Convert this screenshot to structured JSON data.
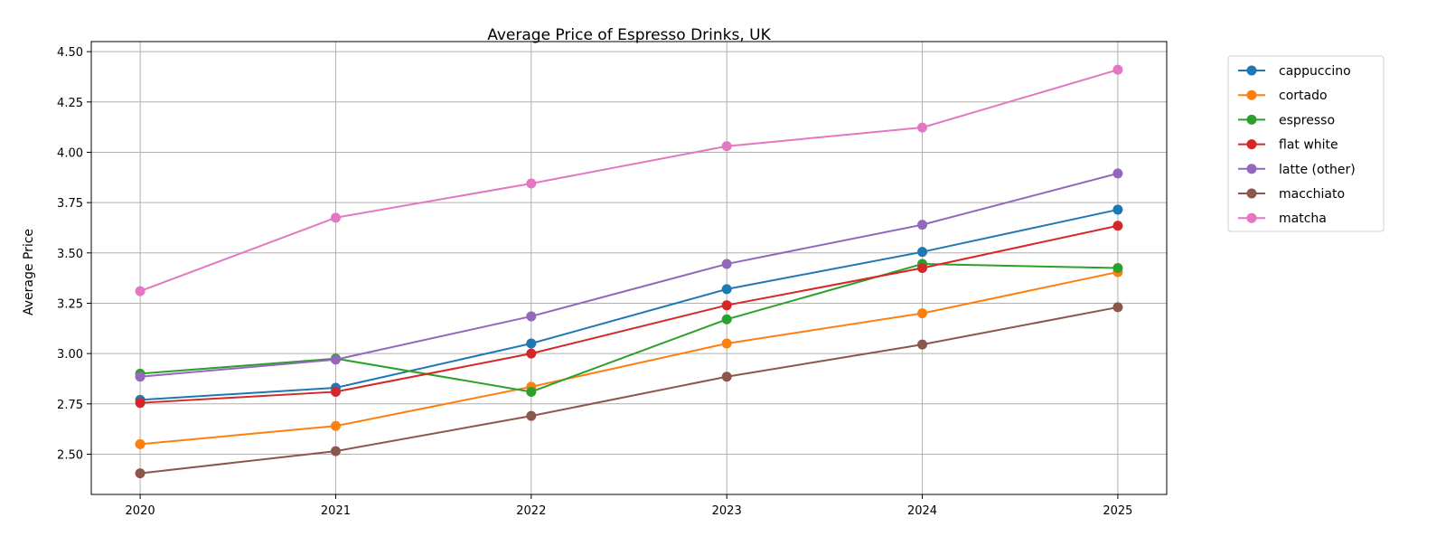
{
  "chart_data": {
    "type": "line",
    "title": "Average Price of Espresso Drinks, UK",
    "xlabel": "",
    "ylabel": "Average Price",
    "x": [
      2020,
      2021,
      2022,
      2023,
      2024,
      2025
    ],
    "xlim": [
      2019.75,
      2025.25
    ],
    "ylim": [
      2.3,
      4.55
    ],
    "yticks": [
      "2.50",
      "2.75",
      "3.00",
      "3.25",
      "3.50",
      "3.75",
      "4.00",
      "4.25",
      "4.50"
    ],
    "grid": true,
    "legend_placement": "outside-top-right",
    "series": [
      {
        "name": "cappuccino",
        "color": "#1f77b4",
        "values": [
          2.77,
          2.83,
          3.05,
          3.32,
          3.505,
          3.715
        ]
      },
      {
        "name": "cortado",
        "color": "#ff7f0e",
        "values": [
          2.55,
          2.64,
          2.835,
          3.05,
          3.2,
          3.405
        ]
      },
      {
        "name": "espresso",
        "color": "#2ca02c",
        "values": [
          2.9,
          2.975,
          2.81,
          3.17,
          3.445,
          3.425
        ]
      },
      {
        "name": "flat white",
        "color": "#d62728",
        "values": [
          2.755,
          2.81,
          3.0,
          3.24,
          3.425,
          3.635
        ]
      },
      {
        "name": "latte (other)",
        "color": "#9467bd",
        "values": [
          2.885,
          2.97,
          3.185,
          3.445,
          3.64,
          3.895
        ]
      },
      {
        "name": "macchiato",
        "color": "#8c564b",
        "values": [
          2.405,
          2.515,
          2.69,
          2.885,
          3.045,
          3.23
        ]
      },
      {
        "name": "matcha",
        "color": "#e377c2",
        "values": [
          3.31,
          3.675,
          3.845,
          4.03,
          4.123,
          4.41
        ]
      }
    ]
  }
}
